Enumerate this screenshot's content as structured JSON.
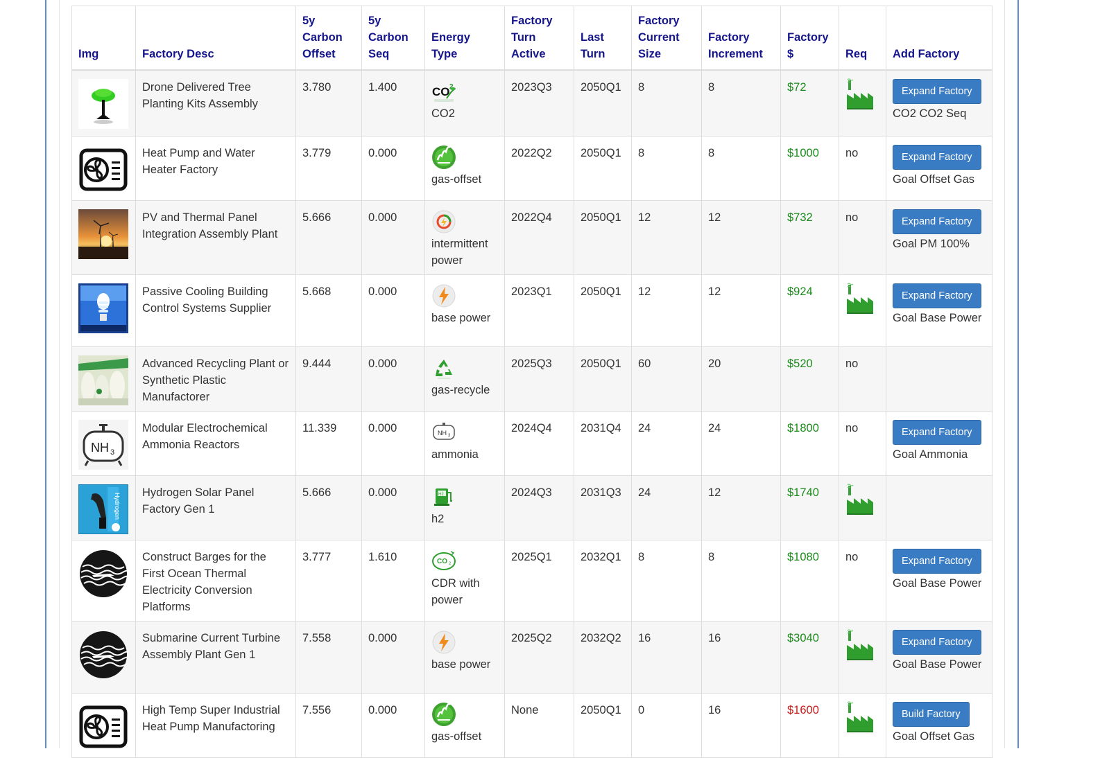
{
  "headers": [
    "Img",
    "Factory Desc",
    "5y Carbon Offset",
    "5y Carbon Seq",
    "Energy Type",
    "Factory Turn Active",
    "Last Turn",
    "Factory Current Size",
    "Factory Increment",
    "Factory $",
    "Req",
    "Add Factory"
  ],
  "rows": [
    {
      "desc": "Drone Delivered Tree Planting Kits Assembly",
      "offset": "3.780",
      "seq": "1.400",
      "energy": "CO2",
      "active": "2023Q3",
      "last": "2050Q1",
      "size": "8",
      "increment": "8",
      "price": "$72",
      "req": "",
      "button": "Expand Factory",
      "goal": "CO2 CO2 Seq"
    },
    {
      "desc": "Heat Pump and Water Heater Factory",
      "offset": "3.779",
      "seq": "0.000",
      "energy": "gas-offset",
      "active": "2022Q2",
      "last": "2050Q1",
      "size": "8",
      "increment": "8",
      "price": "$1000",
      "req": "no",
      "button": "Expand Factory",
      "goal": "Goal Offset Gas"
    },
    {
      "desc": "PV and Thermal Panel Integration Assembly Plant",
      "offset": "5.666",
      "seq": "0.000",
      "energy": "intermittent power",
      "active": "2022Q4",
      "last": "2050Q1",
      "size": "12",
      "increment": "12",
      "price": "$732",
      "req": "no",
      "button": "Expand Factory",
      "goal": "Goal PM 100%"
    },
    {
      "desc": "Passive Cooling Building Control Systems Supplier",
      "offset": "5.668",
      "seq": "0.000",
      "energy": "base power",
      "active": "2023Q1",
      "last": "2050Q1",
      "size": "12",
      "increment": "12",
      "price": "$924",
      "req": "",
      "button": "Expand Factory",
      "goal": "Goal Base Power"
    },
    {
      "desc": "Advanced Recycling Plant or Synthetic Plastic Manufactorer",
      "offset": "9.444",
      "seq": "0.000",
      "energy": "gas-recycle",
      "active": "2025Q3",
      "last": "2050Q1",
      "size": "60",
      "increment": "20",
      "price": "$520",
      "req": "no",
      "button": "",
      "goal": ""
    },
    {
      "desc": "Modular Electrochemical Ammonia Reactors",
      "offset": "11.339",
      "seq": "0.000",
      "energy": "ammonia",
      "active": "2024Q4",
      "last": "2031Q4",
      "size": "24",
      "increment": "24",
      "price": "$1800",
      "req": "no",
      "button": "Expand Factory",
      "goal": "Goal Ammonia"
    },
    {
      "desc": "Hydrogen Solar Panel Factory Gen 1",
      "offset": "5.666",
      "seq": "0.000",
      "energy": "h2",
      "active": "2024Q3",
      "last": "2031Q3",
      "size": "24",
      "increment": "12",
      "price": "$1740",
      "req": "",
      "button": "",
      "goal": ""
    },
    {
      "desc": "Construct Barges for the First Ocean Thermal Electricity Conversion Platforms",
      "offset": "3.777",
      "seq": "1.610",
      "energy": "CDR with power",
      "active": "2025Q1",
      "last": "2032Q1",
      "size": "8",
      "increment": "8",
      "price": "$1080",
      "req": "no",
      "button": "Expand Factory",
      "goal": "Goal Base Power"
    },
    {
      "desc": "Submarine Current Turbine Assembly Plant Gen 1",
      "offset": "7.558",
      "seq": "0.000",
      "energy": "base power",
      "active": "2025Q2",
      "last": "2032Q2",
      "size": "16",
      "increment": "16",
      "price": "$3040",
      "req": "",
      "button": "Expand Factory",
      "goal": "Goal Base Power"
    },
    {
      "desc": "High Temp Super Industrial Heat Pump Manufactoring",
      "offset": "7.556",
      "seq": "0.000",
      "energy": "gas-offset",
      "active": "None",
      "last": "2050Q1",
      "size": "0",
      "increment": "16",
      "price": "$1600",
      "req": "",
      "button": "Build Factory",
      "goal": "Goal Offset Gas"
    }
  ],
  "colors": {
    "header_text": "#15158c",
    "price_green": "#1a8a1a",
    "price_red": "#c41a1a",
    "button": "#3a7cc4",
    "frame": "#5b8fd1"
  }
}
